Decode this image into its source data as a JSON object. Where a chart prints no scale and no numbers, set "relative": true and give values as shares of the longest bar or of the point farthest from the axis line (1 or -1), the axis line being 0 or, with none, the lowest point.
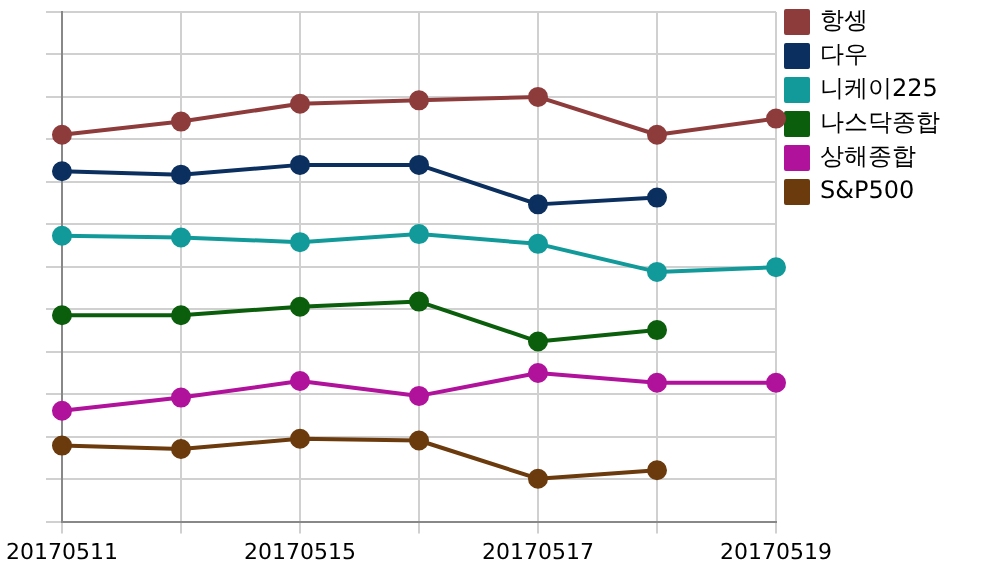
{
  "chart_data": {
    "type": "line",
    "relative": true,
    "categories": [
      "20170511",
      null,
      "20170515",
      null,
      "20170517",
      null,
      "20170519"
    ],
    "series": [
      {
        "name": "항셍",
        "color": "#8e3b3b",
        "values": [
          0.911,
          0.942,
          0.984,
          0.992,
          1,
          0.911,
          0.949
        ]
      },
      {
        "name": "다우",
        "color": "#0b2f5e",
        "values": [
          0.825,
          0.817,
          0.84,
          0.84,
          0.747,
          0.763,
          null
        ]
      },
      {
        "name": "니케이225",
        "color": "#129a9a",
        "values": [
          0.673,
          0.669,
          0.658,
          0.677,
          0.654,
          0.588,
          0.599
        ]
      },
      {
        "name": "나스닥종합",
        "color": "#0b5e0b",
        "values": [
          0.486,
          0.486,
          0.506,
          0.518,
          0.424,
          0.451,
          null
        ]
      },
      {
        "name": "상해종합",
        "color": "#b0129b",
        "values": [
          0.261,
          0.292,
          0.331,
          0.296,
          0.35,
          0.327,
          0.327
        ]
      },
      {
        "name": "S&P500",
        "color": "#6b3a0d",
        "values": [
          0.179,
          0.171,
          0.195,
          0.191,
          0.101,
          0.121,
          null
        ]
      }
    ],
    "grid": true,
    "legend": "right",
    "marker": "circle",
    "line_style": "solid"
  }
}
